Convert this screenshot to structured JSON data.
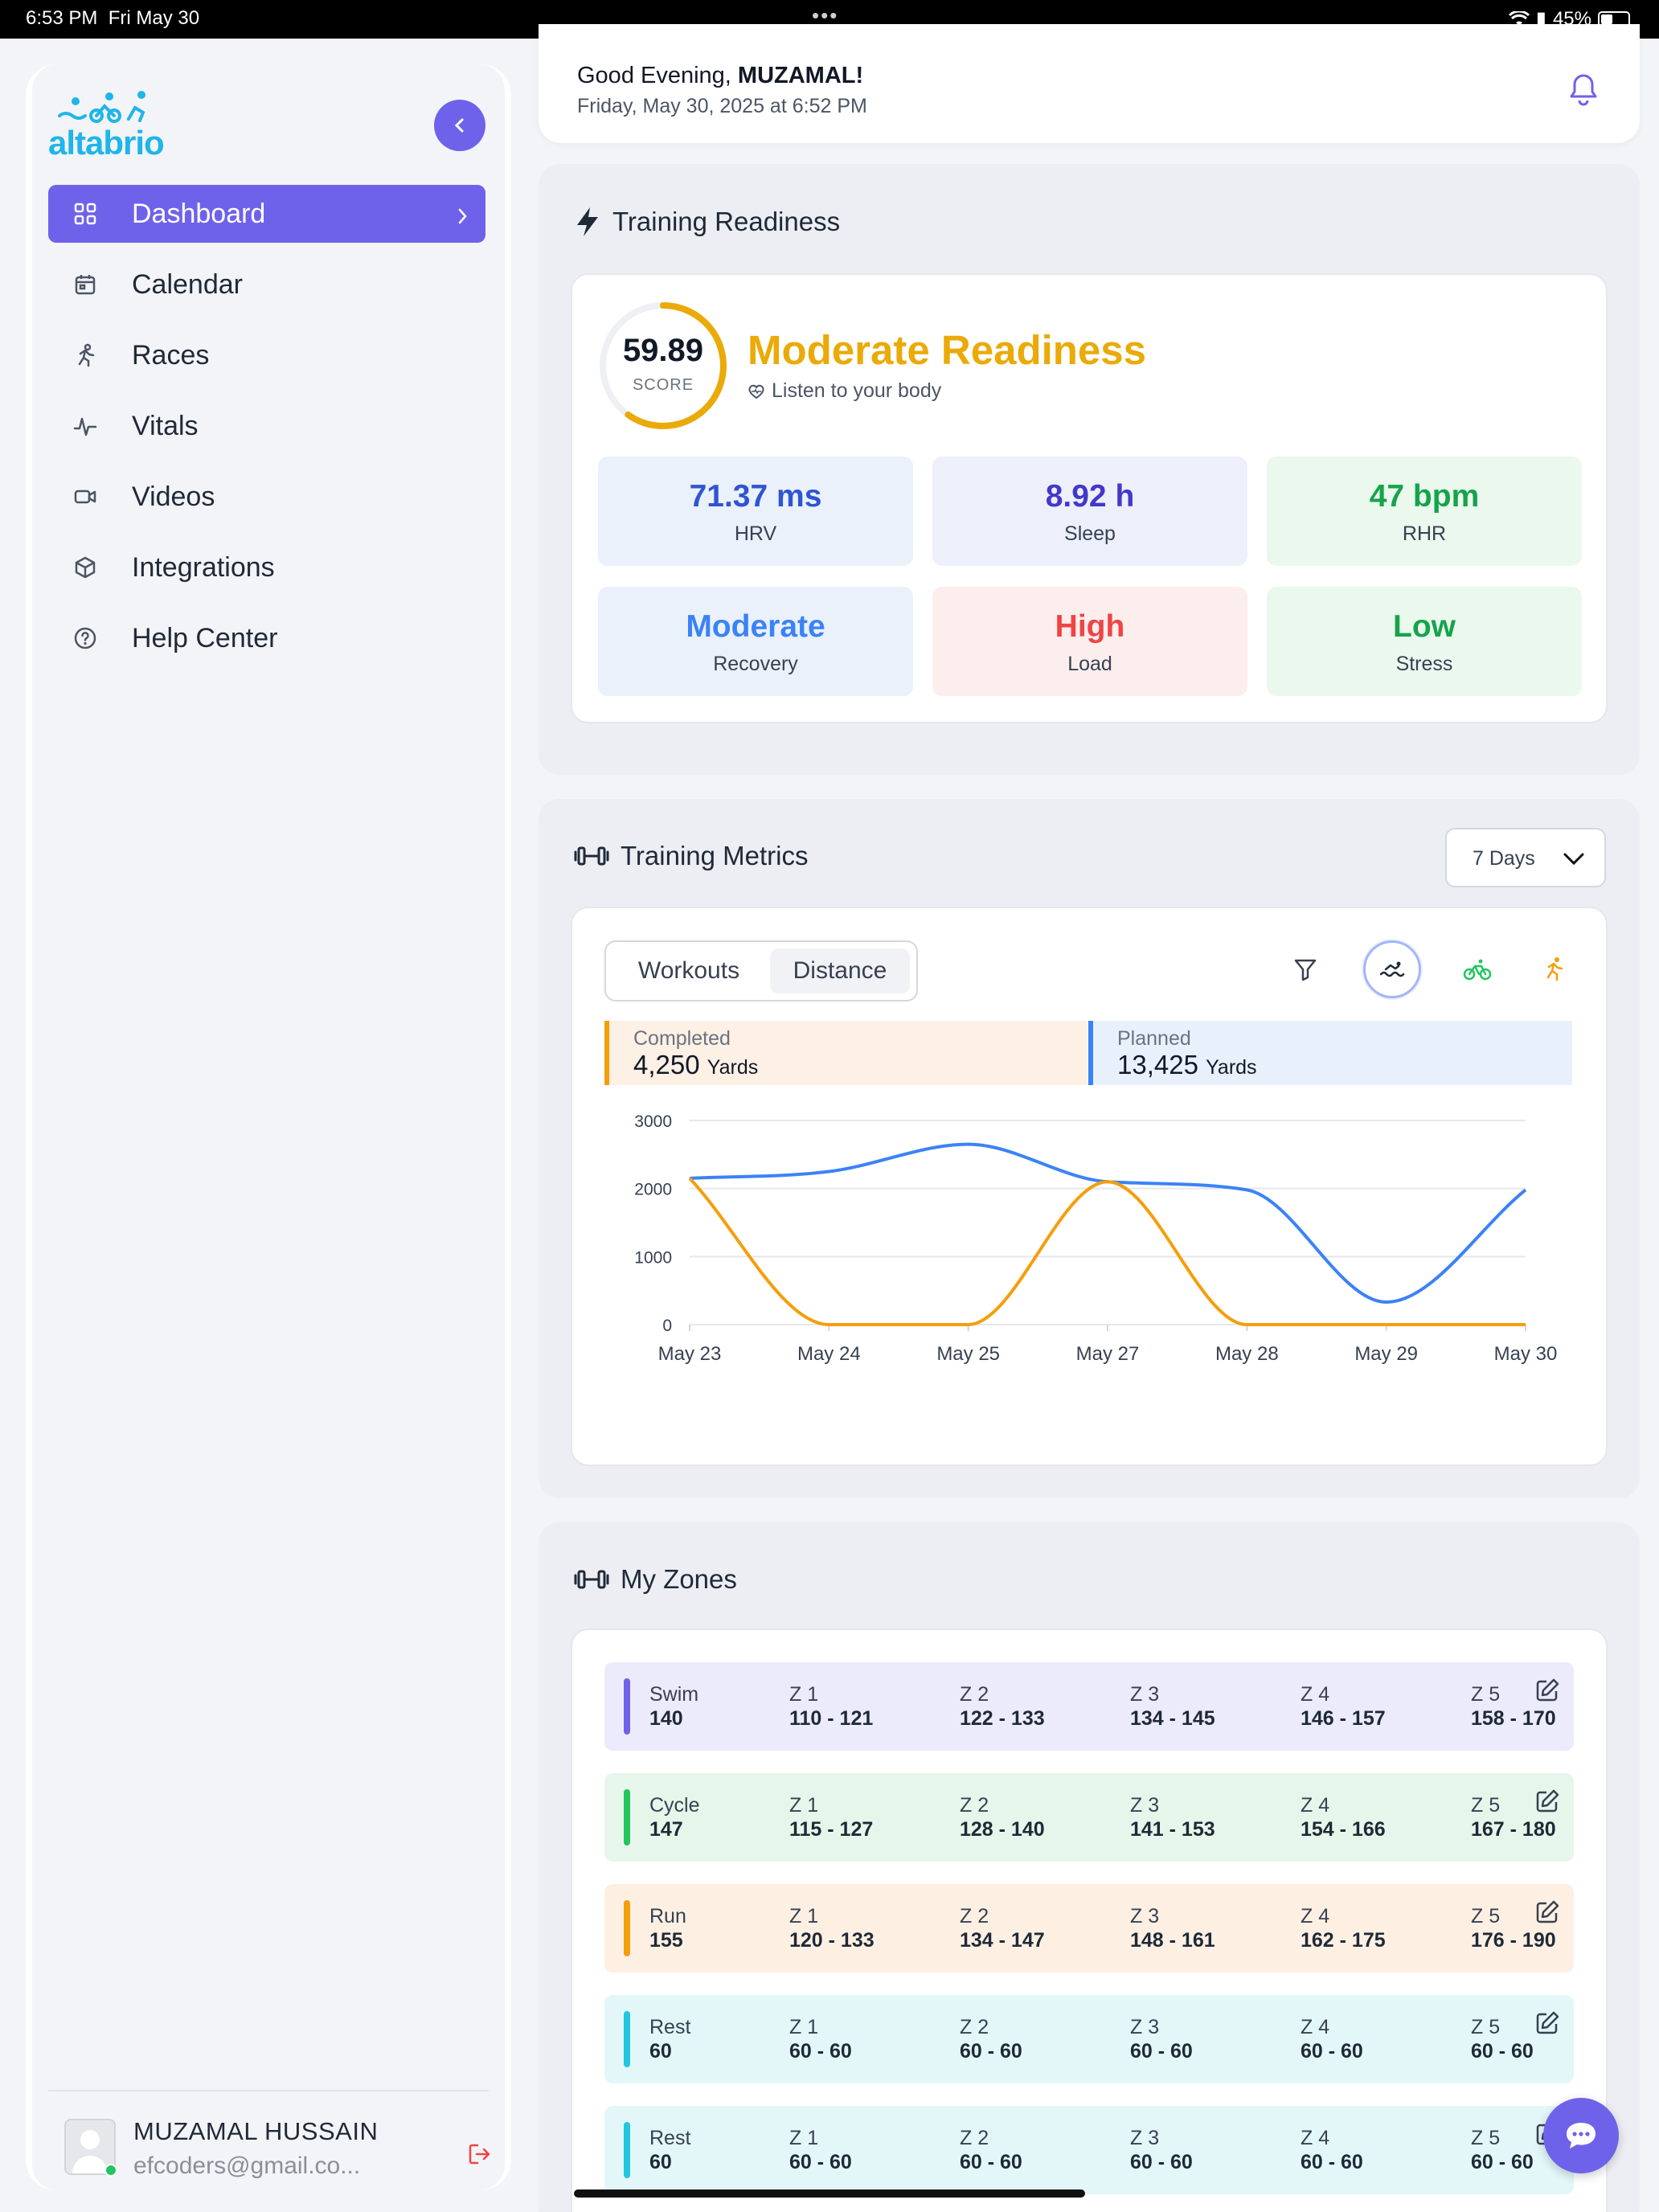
{
  "status": {
    "time": "6:53 PM",
    "date": "Fri May 30",
    "battery": "45%",
    "battery_level": 0.45
  },
  "brand": {
    "name": "altabrio",
    "color": "#1fb5e9",
    "accent": "#6f62ea"
  },
  "nav": [
    {
      "label": "Dashboard",
      "icon": "grid-icon",
      "active": true
    },
    {
      "label": "Calendar",
      "icon": "calendar-icon"
    },
    {
      "label": "Races",
      "icon": "runner-icon"
    },
    {
      "label": "Vitals",
      "icon": "pulse-icon"
    },
    {
      "label": "Videos",
      "icon": "video-icon"
    },
    {
      "label": "Integrations",
      "icon": "cube-icon"
    },
    {
      "label": "Help Center",
      "icon": "help-icon"
    }
  ],
  "user": {
    "name": "MUZAMAL HUSSAIN",
    "email": "efcoders@gmail.co..."
  },
  "header": {
    "greeting_prefix": "Good Evening, ",
    "greeting_name": "MUZAMAL!",
    "datetime": "Friday, May 30, 2025 at 6:52 PM"
  },
  "readiness": {
    "title": "Training Readiness",
    "score": "59.89",
    "score_label": "SCORE",
    "score_fraction": 0.5989,
    "status": "Moderate Readiness",
    "subtitle": "Listen to your body",
    "metrics": [
      {
        "value": "71.37 ms",
        "label": "HRV",
        "color": "#2f55d4",
        "bg": "#eaf1fb"
      },
      {
        "value": "8.92 h",
        "label": "Sleep",
        "color": "#4338ca",
        "bg": "#edf0fb"
      },
      {
        "value": "47 bpm",
        "label": "RHR",
        "color": "#16a34a",
        "bg": "#eaf8ee"
      },
      {
        "value": "Moderate",
        "label": "Recovery",
        "color": "#3b82f6",
        "bg": "#eaf1fb"
      },
      {
        "value": "High",
        "label": "Load",
        "color": "#ef4444",
        "bg": "#fdeeee"
      },
      {
        "value": "Low",
        "label": "Stress",
        "color": "#16a34a",
        "bg": "#eaf8ee"
      }
    ]
  },
  "metrics": {
    "title": "Training Metrics",
    "range": "7 Days",
    "tabs": [
      "Workouts",
      "Distance"
    ],
    "active_tab": "Distance",
    "icons": [
      "filter-icon",
      "swim-icon",
      "bike-icon",
      "run-icon"
    ],
    "completed": {
      "label": "Completed",
      "value": "4,250",
      "unit": "Yards"
    },
    "planned": {
      "label": "Planned",
      "value": "13,425",
      "unit": "Yards"
    }
  },
  "chart_data": {
    "type": "line",
    "categories": [
      "May 23",
      "May 24",
      "May 25",
      "May 27",
      "May 28",
      "May 29",
      "May 30"
    ],
    "yticks": [
      "0",
      "1000",
      "2000",
      "3000"
    ],
    "ylim": [
      0,
      3000
    ],
    "grid": true,
    "series": [
      {
        "color": "#3b82f6",
        "values": [
          2150,
          2250,
          2650,
          2100,
          1980,
          330,
          1980
        ]
      },
      {
        "color": "#f59e0b",
        "values": [
          2150,
          0,
          0,
          2100,
          0,
          0,
          0
        ]
      }
    ]
  },
  "zones": {
    "title": "My Zones",
    "rows": [
      {
        "name": "Swim",
        "hr": "140",
        "color": "#6f62ea",
        "bg": "#ecebfb",
        "zones": [
          [
            "Z 1",
            "110 - 121"
          ],
          [
            "Z 2",
            "122 - 133"
          ],
          [
            "Z 3",
            "134 - 145"
          ],
          [
            "Z 4",
            "146 - 157"
          ],
          [
            "Z 5",
            "158 - 170"
          ]
        ]
      },
      {
        "name": "Cycle",
        "hr": "147",
        "color": "#22c55e",
        "bg": "#e7f6ea",
        "zones": [
          [
            "Z 1",
            "115 - 127"
          ],
          [
            "Z 2",
            "128 - 140"
          ],
          [
            "Z 3",
            "141 - 153"
          ],
          [
            "Z 4",
            "154 - 166"
          ],
          [
            "Z 5",
            "167 - 180"
          ]
        ]
      },
      {
        "name": "Run",
        "hr": "155",
        "color": "#f59e0b",
        "bg": "#fdf0e3",
        "zones": [
          [
            "Z 1",
            "120 - 133"
          ],
          [
            "Z 2",
            "134 - 147"
          ],
          [
            "Z 3",
            "148 - 161"
          ],
          [
            "Z 4",
            "162 - 175"
          ],
          [
            "Z 5",
            "176 - 190"
          ]
        ]
      },
      {
        "name": "Rest",
        "hr": "60",
        "color": "#22c7dd",
        "bg": "#e3f7f9",
        "zones": [
          [
            "Z 1",
            "60 - 60"
          ],
          [
            "Z 2",
            "60 - 60"
          ],
          [
            "Z 3",
            "60 - 60"
          ],
          [
            "Z 4",
            "60 - 60"
          ],
          [
            "Z 5",
            "60 - 60"
          ]
        ]
      },
      {
        "name": "Rest",
        "hr": "60",
        "color": "#22c7dd",
        "bg": "#e3f7f9",
        "zones": [
          [
            "Z 1",
            "60 - 60"
          ],
          [
            "Z 2",
            "60 - 60"
          ],
          [
            "Z 3",
            "60 - 60"
          ],
          [
            "Z 4",
            "60 - 60"
          ],
          [
            "Z 5",
            "60 - 60"
          ]
        ]
      }
    ]
  }
}
